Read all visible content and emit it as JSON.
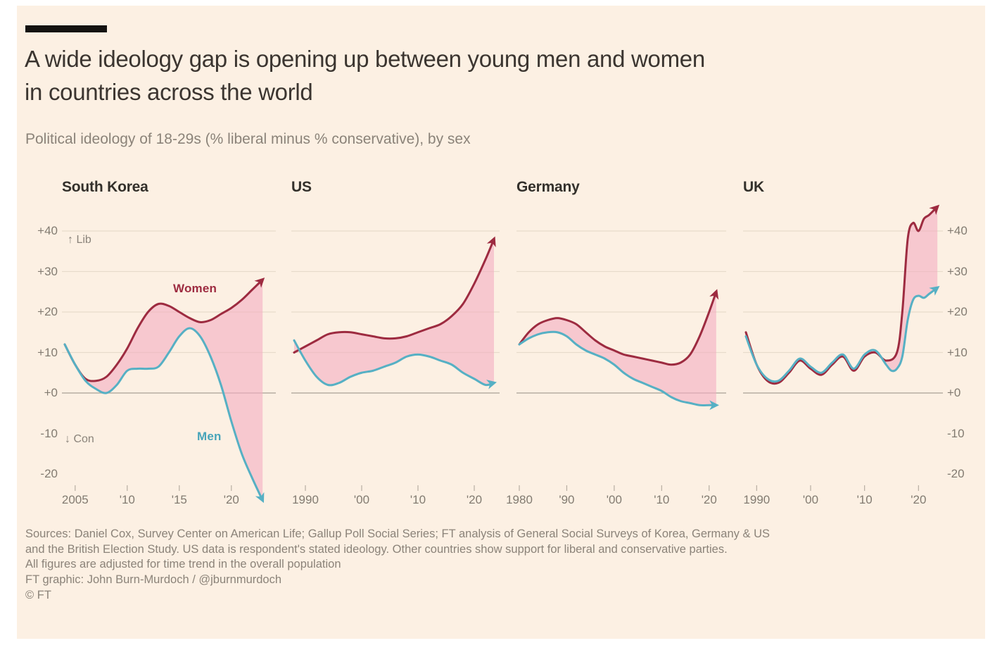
{
  "page": {
    "title_line1": "A wide ideology gap is opening up between young men and women",
    "title_line2": "in countries across the world",
    "subtitle": "Political ideology of 18-29s (% liberal minus % conservative), by sex",
    "footer_lines": [
      "Sources: Daniel Cox, Survey Center on American Life; Gallup Poll Social Series; FT analysis of General Social Surveys of Korea, Germany & US",
      "and the British Election Study. US data is respondent's stated ideology. Other countries show support for liberal and conservative parties.",
      "All figures are adjusted for time trend in the overall population",
      "FT graphic: John Burn-Murdoch / @jburnmurdoch"
    ],
    "copyright": "© FT"
  },
  "colors": {
    "background": "#fcf0e3",
    "women_line": "#9d2b40",
    "men_line": "#56b0c4",
    "band_fill": "#f3aec2",
    "grid": "#e7dbcb",
    "zero_line": "#b7aea2",
    "kicker_bar": "#141210",
    "axis_text": "#827b71"
  },
  "annotations": {
    "lib": "↑ Lib",
    "con": "↓ Con",
    "women": "Women",
    "men": "Men"
  },
  "y_axis": {
    "ticks": [
      {
        "value": 40,
        "label": "+40"
      },
      {
        "value": 30,
        "label": "+30"
      },
      {
        "value": 20,
        "label": "+20"
      },
      {
        "value": 10,
        "label": "+10"
      },
      {
        "value": 0,
        "label": "+0"
      },
      {
        "value": -10,
        "label": "-10"
      },
      {
        "value": -20,
        "label": "-20"
      }
    ],
    "ylim": [
      -25,
      48
    ],
    "gridlines": [
      40,
      30,
      20,
      10
    ],
    "zero_line": 0
  },
  "chart_data": [
    {
      "type": "line",
      "title": "South Korea",
      "xlim": [
        2004,
        2024
      ],
      "xticks": [
        {
          "year": 2005,
          "label": "2005"
        },
        {
          "year": 2010,
          "label": "'10"
        },
        {
          "year": 2015,
          "label": "'15"
        },
        {
          "year": 2020,
          "label": "'20"
        }
      ],
      "series": [
        {
          "name": "Women",
          "color": "#9d2b40",
          "x": [
            2004,
            2005,
            2006,
            2007,
            2008,
            2009,
            2010,
            2011,
            2012,
            2013,
            2014,
            2015,
            2016,
            2017,
            2018,
            2019,
            2020,
            2021,
            2022,
            2023
          ],
          "values": [
            12,
            7,
            3.5,
            3,
            4,
            7,
            11,
            16,
            20,
            22,
            21.5,
            20,
            18.5,
            17.5,
            18,
            19.5,
            21,
            23,
            25.5,
            28
          ]
        },
        {
          "name": "Men",
          "color": "#56b0c4",
          "x": [
            2004,
            2005,
            2006,
            2007,
            2008,
            2009,
            2010,
            2011,
            2012,
            2013,
            2014,
            2015,
            2016,
            2017,
            2018,
            2019,
            2020,
            2021,
            2022,
            2023
          ],
          "values": [
            12,
            7,
            3,
            1,
            0,
            2,
            5.5,
            6,
            6,
            6.5,
            10,
            14,
            16,
            14,
            9,
            2,
            -7,
            -15,
            -21,
            -26.5
          ]
        }
      ]
    },
    {
      "type": "line",
      "title": "US",
      "xlim": [
        1988,
        2024
      ],
      "xticks": [
        {
          "year": 1990,
          "label": "1990"
        },
        {
          "year": 2000,
          "label": "'00"
        },
        {
          "year": 2010,
          "label": "'10"
        },
        {
          "year": 2020,
          "label": "'20"
        }
      ],
      "series": [
        {
          "name": "Women",
          "color": "#9d2b40",
          "x": [
            1988,
            1990,
            1992,
            1994,
            1996,
            1998,
            2000,
            2002,
            2004,
            2006,
            2008,
            2010,
            2012,
            2014,
            2016,
            2018,
            2020,
            2022,
            2023.5
          ],
          "values": [
            10,
            11.5,
            13,
            14.5,
            15,
            15,
            14.5,
            14,
            13.5,
            13.5,
            14,
            15,
            16,
            17,
            19,
            22,
            27,
            33,
            38
          ]
        },
        {
          "name": "Men",
          "color": "#56b0c4",
          "x": [
            1988,
            1990,
            1992,
            1994,
            1996,
            1998,
            2000,
            2002,
            2004,
            2006,
            2008,
            2010,
            2012,
            2014,
            2016,
            2018,
            2020,
            2022,
            2023.5
          ],
          "values": [
            13,
            8,
            4,
            2,
            2.5,
            4,
            5,
            5.5,
            6.5,
            7.5,
            9,
            9.5,
            9,
            8,
            7,
            5,
            3.5,
            2,
            2.5
          ]
        }
      ]
    },
    {
      "type": "line",
      "title": "Germany",
      "xlim": [
        1980,
        2023
      ],
      "xticks": [
        {
          "year": 1980,
          "label": "1980"
        },
        {
          "year": 1990,
          "label": "'90"
        },
        {
          "year": 2000,
          "label": "'00"
        },
        {
          "year": 2010,
          "label": "'10"
        },
        {
          "year": 2020,
          "label": "'20"
        }
      ],
      "series": [
        {
          "name": "Women",
          "color": "#9d2b40",
          "x": [
            1980,
            1982,
            1984,
            1986,
            1988,
            1990,
            1992,
            1994,
            1996,
            1998,
            2000,
            2002,
            2004,
            2006,
            2008,
            2010,
            2012,
            2014,
            2016,
            2018,
            2020,
            2021.5
          ],
          "values": [
            12,
            15,
            17,
            18,
            18.5,
            18,
            17,
            15,
            13,
            11.5,
            10.5,
            9.5,
            9,
            8.5,
            8,
            7.5,
            7,
            7.5,
            9.5,
            14,
            20,
            25
          ]
        },
        {
          "name": "Men",
          "color": "#56b0c4",
          "x": [
            1980,
            1982,
            1984,
            1986,
            1988,
            1990,
            1992,
            1994,
            1996,
            1998,
            2000,
            2002,
            2004,
            2006,
            2008,
            2010,
            2012,
            2014,
            2016,
            2018,
            2020,
            2021.5
          ],
          "values": [
            12,
            13.5,
            14.5,
            15,
            15,
            14,
            12,
            10.5,
            9.5,
            8.5,
            7,
            5,
            3.5,
            2.5,
            1.5,
            0.5,
            -1,
            -2,
            -2.5,
            -3,
            -3,
            -3
          ]
        }
      ]
    },
    {
      "type": "line",
      "title": "UK",
      "xlim": [
        1988,
        2024
      ],
      "xticks": [
        {
          "year": 1990,
          "label": "1990"
        },
        {
          "year": 2000,
          "label": "'00"
        },
        {
          "year": 2010,
          "label": "'10"
        },
        {
          "year": 2020,
          "label": "'20"
        }
      ],
      "series": [
        {
          "name": "Women",
          "color": "#9d2b40",
          "x": [
            1988,
            1990,
            1992,
            1994,
            1996,
            1998,
            2000,
            2002,
            2004,
            2006,
            2008,
            2010,
            2012,
            2014,
            2016,
            2017,
            2018,
            2019,
            2020,
            2021,
            2022,
            2023.5
          ],
          "values": [
            15,
            7,
            3,
            2.5,
            5,
            8,
            6,
            4.5,
            7,
            9,
            5.5,
            9,
            10,
            8,
            10,
            20,
            38,
            42,
            40,
            43,
            44,
            46
          ]
        },
        {
          "name": "Men",
          "color": "#56b0c4",
          "x": [
            1988,
            1990,
            1992,
            1994,
            1996,
            1998,
            2000,
            2002,
            2004,
            2006,
            2008,
            2010,
            2012,
            2014,
            2015,
            2016,
            2017,
            2018,
            2019,
            2020,
            2021,
            2022,
            2023.5
          ],
          "values": [
            14,
            7,
            3.5,
            3,
            5.5,
            8.5,
            6.5,
            5,
            7.5,
            9.5,
            6,
            9.5,
            10.5,
            7,
            5.5,
            6,
            9,
            18,
            23,
            24,
            23.5,
            24.5,
            26
          ]
        }
      ]
    }
  ]
}
